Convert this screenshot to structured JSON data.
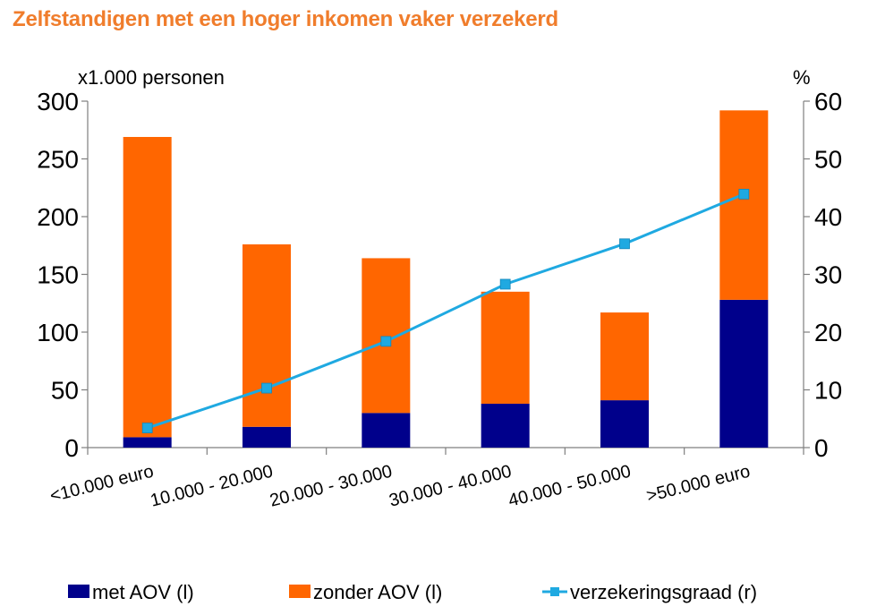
{
  "chart_data": {
    "type": "bar",
    "stacked": true,
    "title": "Zelfstandigen met een hoger inkomen vaker verzekerd",
    "ylabel_left": "x1.000 personen",
    "ylabel_right": "%",
    "ylim_left": [
      0,
      300
    ],
    "ylim_right": [
      0,
      60
    ],
    "yticks_left": [
      0,
      50,
      100,
      150,
      200,
      250,
      300
    ],
    "yticks_right": [
      0,
      10,
      20,
      30,
      40,
      50,
      60
    ],
    "categories": [
      "<10.000 euro",
      "10.000 - 20.000",
      "20.000 - 30.000",
      "30.000 - 40.000",
      "40.000 - 50.000",
      ">50.000 euro"
    ],
    "series": [
      {
        "name": "met AOV (l)",
        "type": "bar",
        "axis": "left",
        "color": "#00008B",
        "values": [
          9,
          18,
          30,
          38,
          41,
          128
        ]
      },
      {
        "name": "zonder AOV (l)",
        "type": "bar",
        "axis": "left",
        "color": "#FF6600",
        "values": [
          260,
          158,
          134,
          97,
          76,
          164
        ]
      },
      {
        "name": "verzekeringsgraad (r)",
        "type": "line",
        "axis": "right",
        "color": "#1FA9E1",
        "values": [
          3.4,
          10.3,
          18.4,
          28.3,
          35.3,
          43.9
        ]
      }
    ],
    "grid": false,
    "legend": "bottom"
  }
}
